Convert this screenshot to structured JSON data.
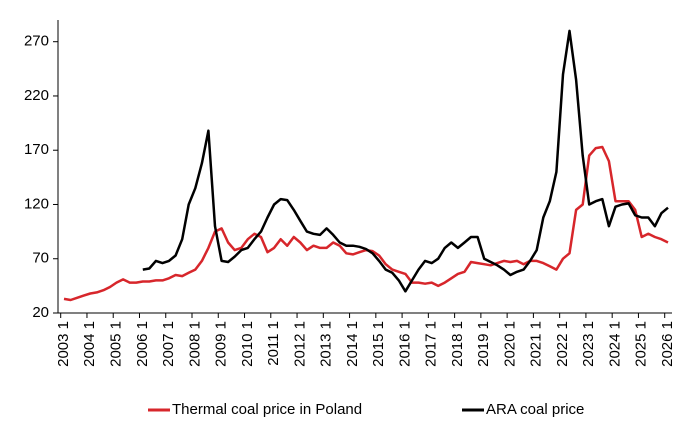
{
  "chart_data": {
    "type": "line",
    "categories": [
      "2003 1",
      null,
      null,
      null,
      "2004 1",
      null,
      null,
      null,
      "2005 1",
      null,
      null,
      null,
      "2006 1",
      null,
      null,
      null,
      "2007 1",
      null,
      null,
      null,
      "2008 1",
      null,
      null,
      null,
      "2009 1",
      null,
      null,
      null,
      "2010 1",
      null,
      null,
      null,
      "2011 1",
      null,
      null,
      null,
      "2012 1",
      null,
      null,
      null,
      "2013 1",
      null,
      null,
      null,
      "2014 1",
      null,
      null,
      null,
      "2015 1",
      null,
      null,
      null,
      "2016 1",
      null,
      null,
      null,
      "2017 1",
      null,
      null,
      null,
      "2018 1",
      null,
      null,
      null,
      "2019 1",
      null,
      null,
      null,
      "2020 1",
      null,
      null,
      null,
      "2021 1",
      null,
      null,
      null,
      "2022 1",
      null,
      null,
      null,
      "2023 1",
      null,
      null,
      null,
      "2024 1",
      null,
      null,
      null,
      "2025 1",
      null,
      null,
      null,
      "2026 1"
    ],
    "series": [
      {
        "name": "Thermal coal price in Poland",
        "color": "#d7262b",
        "values": [
          33,
          32,
          34,
          36,
          38,
          39,
          41,
          44,
          48,
          51,
          48,
          48,
          49,
          49,
          50,
          50,
          52,
          55,
          54,
          57,
          60,
          68,
          80,
          95,
          98,
          85,
          78,
          80,
          88,
          93,
          90,
          76,
          80,
          88,
          82,
          90,
          85,
          78,
          82,
          80,
          80,
          85,
          82,
          75,
          74,
          76,
          78,
          77,
          73,
          65,
          60,
          58,
          56,
          48,
          48,
          47,
          48,
          45,
          48,
          52,
          56,
          58,
          67,
          66,
          65,
          64,
          66,
          68,
          67,
          68,
          65,
          68,
          68,
          66,
          63,
          60,
          70,
          75,
          115,
          120,
          165,
          172,
          173,
          160,
          123,
          123,
          123,
          115,
          90,
          93,
          90,
          88,
          85
        ]
      },
      {
        "name": "ARA coal price",
        "color": "#000000",
        "values": [
          null,
          null,
          null,
          null,
          null,
          null,
          null,
          null,
          null,
          null,
          null,
          null,
          60,
          61,
          68,
          66,
          68,
          73,
          88,
          120,
          135,
          158,
          188,
          100,
          68,
          67,
          72,
          78,
          80,
          88,
          95,
          108,
          120,
          125,
          124,
          115,
          105,
          95,
          93,
          92,
          98,
          92,
          85,
          82,
          82,
          81,
          79,
          75,
          68,
          60,
          57,
          50,
          40,
          50,
          60,
          68,
          66,
          70,
          80,
          85,
          80,
          85,
          90,
          90,
          70,
          67,
          64,
          60,
          55,
          58,
          60,
          68,
          78,
          108,
          123,
          150,
          240,
          280,
          235,
          165,
          120,
          123,
          125,
          100,
          118,
          120,
          121,
          110,
          108,
          108,
          100,
          112,
          117
        ]
      }
    ],
    "ylim": [
      20,
      290
    ],
    "yticks": [
      20,
      70,
      120,
      170,
      220,
      270
    ],
    "legend": "bottom"
  }
}
